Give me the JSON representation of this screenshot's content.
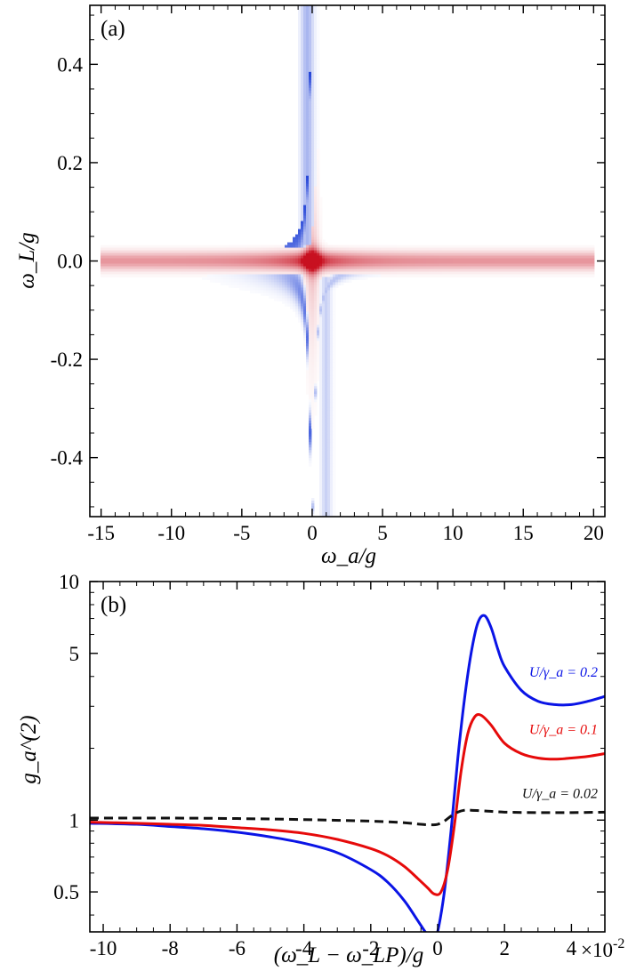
{
  "chart_data": [
    {
      "panel": "(a)",
      "type": "heatmap",
      "xlabel": "ω_a/g",
      "ylabel": "ω_L/g",
      "xlim": [
        -15.8,
        20.8
      ],
      "ylim": [
        -0.52,
        0.52
      ],
      "xticks": [
        -15,
        -10,
        -5,
        0,
        5,
        10,
        15,
        20
      ],
      "xtick_labels": [
        "-15",
        "-10",
        "-5",
        "0",
        "5",
        "10",
        "15",
        "20"
      ],
      "yticks": [
        -0.4,
        -0.2,
        0.0,
        0.2,
        0.4
      ],
      "ytick_labels": [
        "-0.4",
        "-0.2",
        "0.0",
        "0.2",
        "0.4"
      ],
      "colormap": {
        "low": "#2848d8",
        "mid": "#ffffff",
        "high": "#c81020"
      },
      "features": {
        "red_band_wL": 0.0,
        "blue_branches": "ω_L ≈ ±0.05/(ω_a/g) hyperbola-like branches, strongest near ω_a = 0",
        "red_peak": {
          "x": 0,
          "y": 0
        }
      },
      "grid": false
    },
    {
      "panel": "(b)",
      "type": "line",
      "xlabel": "(ω_L − ω_LP)/g",
      "ylabel": "g_a^(2)",
      "xlim": [
        -0.104,
        0.05
      ],
      "ylim": [
        0.34,
        10
      ],
      "yscale": "log",
      "xticks": [
        -0.1,
        -0.08,
        -0.06,
        -0.04,
        -0.02,
        0.0,
        0.02,
        0.04
      ],
      "xtick_labels": [
        "-10",
        "-8",
        "-6",
        "-4",
        "-2",
        "0",
        "2",
        "4"
      ],
      "x_multiplier_label": "×10",
      "x_multiplier_exp": "-2",
      "yticks": [
        0.5,
        1,
        5,
        10
      ],
      "ytick_labels": [
        "0.5",
        "1",
        "5",
        "10"
      ],
      "grid": false,
      "series": [
        {
          "name": "U/γ_a = 0.2",
          "color": "#0a14e6",
          "dash": "solid",
          "x": [
            -0.104,
            -0.09,
            -0.08,
            -0.07,
            -0.06,
            -0.05,
            -0.04,
            -0.03,
            -0.02,
            -0.015,
            -0.01,
            -0.006,
            -0.003,
            -0.001,
            0.0,
            0.002,
            0.004,
            0.006,
            0.008,
            0.01,
            0.012,
            0.014,
            0.016,
            0.018,
            0.02,
            0.025,
            0.03,
            0.035,
            0.04,
            0.045,
            0.05
          ],
          "y": [
            0.97,
            0.96,
            0.94,
            0.92,
            0.89,
            0.85,
            0.8,
            0.73,
            0.62,
            0.55,
            0.46,
            0.38,
            0.33,
            0.32,
            0.34,
            0.5,
            0.9,
            1.8,
            3.2,
            5.0,
            6.7,
            7.2,
            6.4,
            5.2,
            4.4,
            3.5,
            3.15,
            3.05,
            3.05,
            3.15,
            3.3
          ]
        },
        {
          "name": "U/γ_a = 0.1",
          "color": "#e60a0a",
          "dash": "solid",
          "x": [
            -0.104,
            -0.09,
            -0.08,
            -0.07,
            -0.06,
            -0.05,
            -0.04,
            -0.03,
            -0.02,
            -0.015,
            -0.01,
            -0.006,
            -0.003,
            -0.001,
            0.001,
            0.003,
            0.005,
            0.007,
            0.009,
            0.011,
            0.013,
            0.016,
            0.02,
            0.025,
            0.03,
            0.035,
            0.04,
            0.045,
            0.05
          ],
          "y": [
            0.98,
            0.97,
            0.96,
            0.95,
            0.93,
            0.91,
            0.88,
            0.83,
            0.76,
            0.71,
            0.64,
            0.57,
            0.52,
            0.49,
            0.5,
            0.62,
            0.95,
            1.6,
            2.3,
            2.7,
            2.75,
            2.5,
            2.1,
            1.9,
            1.82,
            1.8,
            1.82,
            1.85,
            1.9
          ]
        },
        {
          "name": "U/γ_a = 0.02",
          "color": "#111111",
          "dash": "dashed",
          "x": [
            -0.104,
            -0.09,
            -0.08,
            -0.06,
            -0.04,
            -0.02,
            -0.01,
            -0.005,
            -0.002,
            0.0,
            0.002,
            0.004,
            0.006,
            0.008,
            0.01,
            0.015,
            0.02,
            0.03,
            0.04,
            0.05
          ],
          "y": [
            1.02,
            1.02,
            1.02,
            1.015,
            1.005,
            0.99,
            0.975,
            0.96,
            0.955,
            0.96,
            0.99,
            1.04,
            1.08,
            1.1,
            1.1,
            1.09,
            1.08,
            1.075,
            1.075,
            1.08
          ]
        }
      ]
    }
  ]
}
